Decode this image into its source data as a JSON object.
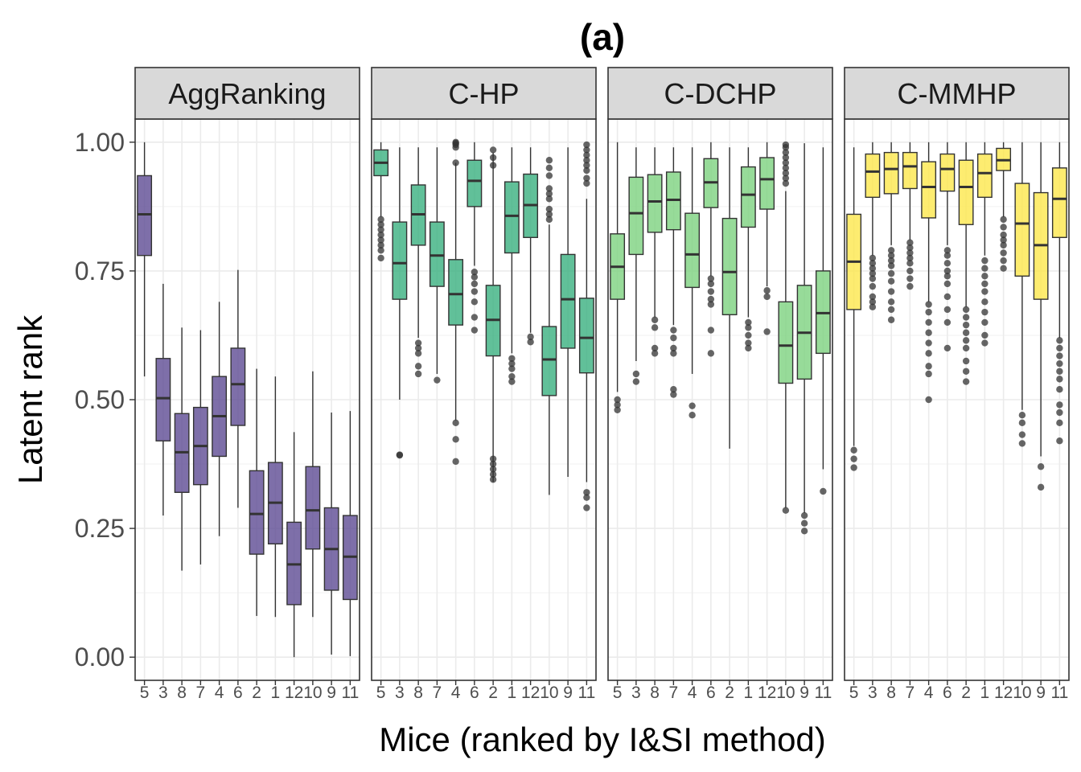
{
  "chart_data": {
    "type": "boxplot",
    "title": "(a)",
    "xlabel": "Mice (ranked by I&SI method)",
    "ylabel": "Latent rank",
    "ylim": [
      -0.045,
      1.045
    ],
    "yticks": [
      0.0,
      0.25,
      0.5,
      0.75,
      1.0
    ],
    "ytick_labels": [
      "0.00",
      "0.25",
      "0.50",
      "0.75",
      "1.00"
    ],
    "categories": [
      "5",
      "3",
      "8",
      "7",
      "4",
      "6",
      "2",
      "1",
      "12",
      "10",
      "9",
      "11"
    ],
    "category_labels": [
      "5",
      "3",
      "8",
      "7",
      "4",
      "6",
      "2",
      "1",
      "12",
      "10",
      "9",
      "11"
    ],
    "facets": [
      {
        "name": "AggRanking",
        "color": "#5E4B93",
        "boxes": [
          {
            "lo": 0.545,
            "q1": 0.78,
            "med": 0.86,
            "q3": 0.935,
            "hi": 1.0,
            "out": []
          },
          {
            "lo": 0.275,
            "q1": 0.42,
            "med": 0.503,
            "q3": 0.58,
            "hi": 0.725,
            "out": []
          },
          {
            "lo": 0.168,
            "q1": 0.32,
            "med": 0.398,
            "q3": 0.473,
            "hi": 0.64,
            "out": []
          },
          {
            "lo": 0.18,
            "q1": 0.335,
            "med": 0.41,
            "q3": 0.485,
            "hi": 0.635,
            "out": []
          },
          {
            "lo": 0.235,
            "q1": 0.39,
            "med": 0.468,
            "q3": 0.545,
            "hi": 0.69,
            "out": []
          },
          {
            "lo": 0.29,
            "q1": 0.45,
            "med": 0.53,
            "q3": 0.6,
            "hi": 0.752,
            "out": []
          },
          {
            "lo": 0.08,
            "q1": 0.2,
            "med": 0.278,
            "q3": 0.362,
            "hi": 0.56,
            "out": []
          },
          {
            "lo": 0.078,
            "q1": 0.22,
            "med": 0.3,
            "q3": 0.378,
            "hi": 0.545,
            "out": []
          },
          {
            "lo": 0.0,
            "q1": 0.102,
            "med": 0.18,
            "q3": 0.262,
            "hi": 0.437,
            "out": []
          },
          {
            "lo": 0.078,
            "q1": 0.21,
            "med": 0.285,
            "q3": 0.37,
            "hi": 0.555,
            "out": []
          },
          {
            "lo": 0.005,
            "q1": 0.13,
            "med": 0.21,
            "q3": 0.29,
            "hi": 0.475,
            "out": []
          },
          {
            "lo": 0.002,
            "q1": 0.112,
            "med": 0.195,
            "q3": 0.275,
            "hi": 0.478,
            "out": []
          }
        ]
      },
      {
        "name": "C-HP",
        "color": "#3AB07F",
        "boxes": [
          {
            "lo": 0.855,
            "q1": 0.935,
            "med": 0.96,
            "q3": 0.985,
            "hi": 1.0,
            "out": [
              0.85,
              0.84,
              0.83,
              0.82,
              0.81,
              0.8,
              0.79,
              0.775
            ]
          },
          {
            "lo": 0.5,
            "q1": 0.695,
            "med": 0.765,
            "q3": 0.845,
            "hi": 0.99,
            "out": [
              0.393,
              0.392
            ]
          },
          {
            "lo": 0.62,
            "q1": 0.8,
            "med": 0.86,
            "q3": 0.917,
            "hi": 0.99,
            "out": [
              0.61,
              0.6,
              0.59,
              0.565,
              0.55
            ]
          },
          {
            "lo": 0.55,
            "q1": 0.72,
            "med": 0.78,
            "q3": 0.845,
            "hi": 0.99,
            "out": [
              0.538
            ]
          },
          {
            "lo": 0.46,
            "q1": 0.645,
            "med": 0.705,
            "q3": 0.772,
            "hi": 0.96,
            "out": [
              1.0,
              0.998,
              0.995,
              0.99,
              0.96,
              0.455,
              0.423,
              0.38
            ]
          },
          {
            "lo": 0.76,
            "q1": 0.875,
            "med": 0.925,
            "q3": 0.965,
            "hi": 1.0,
            "out": [
              0.748,
              0.738,
              0.725,
              0.71,
              0.69,
              0.66,
              0.635
            ]
          },
          {
            "lo": 0.34,
            "q1": 0.585,
            "med": 0.655,
            "q3": 0.722,
            "hi": 0.98,
            "out": [
              0.985,
              0.97,
              0.955,
              0.385,
              0.375,
              0.365,
              0.355,
              0.345
            ]
          },
          {
            "lo": 0.59,
            "q1": 0.785,
            "med": 0.857,
            "q3": 0.923,
            "hi": 0.99,
            "out": [
              0.58,
              0.57,
              0.56,
              0.545,
              0.535
            ]
          },
          {
            "lo": 0.63,
            "q1": 0.815,
            "med": 0.878,
            "q3": 0.938,
            "hi": 0.99,
            "out": [
              0.622,
              0.612
            ]
          },
          {
            "lo": 0.315,
            "q1": 0.508,
            "med": 0.578,
            "q3": 0.642,
            "hi": 0.84,
            "out": [
              0.965,
              0.95,
              0.935,
              0.91,
              0.9,
              0.89,
              0.87,
              0.86,
              0.85
            ]
          },
          {
            "lo": 0.35,
            "q1": 0.6,
            "med": 0.695,
            "q3": 0.782,
            "hi": 0.99,
            "out": []
          },
          {
            "lo": 0.34,
            "q1": 0.552,
            "med": 0.62,
            "q3": 0.697,
            "hi": 0.89,
            "out": [
              0.995,
              0.985,
              0.975,
              0.965,
              0.955,
              0.945,
              0.93,
              0.92,
              0.32,
              0.31,
              0.29
            ]
          }
        ]
      },
      {
        "name": "C-DCHP",
        "color": "#7DD280",
        "boxes": [
          {
            "lo": 0.515,
            "q1": 0.695,
            "med": 0.758,
            "q3": 0.822,
            "hi": 1.0,
            "out": [
              0.5,
              0.49,
              0.48
            ]
          },
          {
            "lo": 0.575,
            "q1": 0.782,
            "med": 0.862,
            "q3": 0.932,
            "hi": 0.99,
            "out": [
              0.55,
              0.535
            ]
          },
          {
            "lo": 0.66,
            "q1": 0.825,
            "med": 0.885,
            "q3": 0.937,
            "hi": 0.99,
            "out": [
              0.655,
              0.64,
              0.6,
              0.59
            ]
          },
          {
            "lo": 0.645,
            "q1": 0.83,
            "med": 0.888,
            "q3": 0.942,
            "hi": 0.99,
            "out": [
              0.635,
              0.62,
              0.6,
              0.59,
              0.52,
              0.51
            ]
          },
          {
            "lo": 0.55,
            "q1": 0.718,
            "med": 0.782,
            "q3": 0.862,
            "hi": 0.99,
            "out": [
              0.488,
              0.47
            ]
          },
          {
            "lo": 0.74,
            "q1": 0.873,
            "med": 0.922,
            "q3": 0.968,
            "hi": 1.0,
            "out": [
              0.735,
              0.725,
              0.71,
              0.695,
              0.685,
              0.635,
              0.59
            ]
          },
          {
            "lo": 0.405,
            "q1": 0.665,
            "med": 0.748,
            "q3": 0.852,
            "hi": 0.99,
            "out": []
          },
          {
            "lo": 0.66,
            "q1": 0.835,
            "med": 0.898,
            "q3": 0.952,
            "hi": 0.99,
            "out": [
              0.65,
              0.64,
              0.625,
              0.61,
              0.6
            ]
          },
          {
            "lo": 0.72,
            "q1": 0.87,
            "med": 0.928,
            "q3": 0.97,
            "hi": 1.0,
            "out": [
              0.712,
              0.7,
              0.632
            ]
          },
          {
            "lo": 0.29,
            "q1": 0.532,
            "med": 0.605,
            "q3": 0.69,
            "hi": 0.905,
            "out": [
              0.995,
              0.99,
              0.98,
              0.97,
              0.96,
              0.95,
              0.94,
              0.93,
              0.92,
              0.285
            ]
          },
          {
            "lo": 0.28,
            "q1": 0.54,
            "med": 0.63,
            "q3": 0.722,
            "hi": 0.998,
            "out": [
              0.275,
              0.26,
              0.245
            ]
          },
          {
            "lo": 0.365,
            "q1": 0.59,
            "med": 0.668,
            "q3": 0.75,
            "hi": 0.99,
            "out": [
              0.322
            ]
          }
        ]
      },
      {
        "name": "C-MMHP",
        "color": "#FDE74C",
        "boxes": [
          {
            "lo": 0.41,
            "q1": 0.675,
            "med": 0.768,
            "q3": 0.86,
            "hi": 0.99,
            "out": [
              0.402,
              0.385,
              0.368
            ]
          },
          {
            "lo": 0.78,
            "q1": 0.893,
            "med": 0.943,
            "q3": 0.977,
            "hi": 1.0,
            "out": [
              0.775,
              0.765,
              0.755,
              0.745,
              0.735,
              0.72,
              0.7,
              0.69,
              0.68
            ]
          },
          {
            "lo": 0.8,
            "q1": 0.9,
            "med": 0.948,
            "q3": 0.98,
            "hi": 1.0,
            "out": [
              0.79,
              0.78,
              0.77,
              0.76,
              0.745,
              0.73,
              0.71,
              0.69,
              0.675,
              0.655
            ]
          },
          {
            "lo": 0.81,
            "q1": 0.91,
            "med": 0.953,
            "q3": 0.98,
            "hi": 1.0,
            "out": [
              0.805,
              0.795,
              0.785,
              0.775,
              0.765,
              0.75,
              0.735,
              0.72
            ]
          },
          {
            "lo": 0.69,
            "q1": 0.853,
            "med": 0.913,
            "q3": 0.962,
            "hi": 1.0,
            "out": [
              0.685,
              0.67,
              0.65,
              0.63,
              0.61,
              0.59,
              0.565,
              0.55,
              0.5
            ]
          },
          {
            "lo": 0.8,
            "q1": 0.905,
            "med": 0.948,
            "q3": 0.977,
            "hi": 1.0,
            "out": [
              0.79,
              0.78,
              0.765,
              0.75,
              0.74,
              0.725,
              0.7,
              0.675,
              0.65,
              0.6
            ]
          },
          {
            "lo": 0.68,
            "q1": 0.84,
            "med": 0.913,
            "q3": 0.965,
            "hi": 1.0,
            "out": [
              0.675,
              0.66,
              0.645,
              0.63,
              0.615,
              0.6,
              0.575,
              0.555,
              0.535
            ]
          },
          {
            "lo": 0.78,
            "q1": 0.893,
            "med": 0.94,
            "q3": 0.977,
            "hi": 1.0,
            "out": [
              0.77,
              0.755,
              0.74,
              0.725,
              0.71,
              0.69,
              0.67,
              0.65,
              0.625,
              0.61
            ]
          },
          {
            "lo": 0.855,
            "q1": 0.945,
            "med": 0.965,
            "q3": 0.988,
            "hi": 1.0,
            "out": [
              0.85,
              0.835,
              0.82,
              0.81,
              0.8,
              0.785,
              0.77,
              0.755
            ]
          },
          {
            "lo": 0.48,
            "q1": 0.74,
            "med": 0.842,
            "q3": 0.92,
            "hi": 1.0,
            "out": [
              0.47,
              0.455,
              0.432,
              0.415
            ]
          },
          {
            "lo": 0.39,
            "q1": 0.695,
            "med": 0.8,
            "q3": 0.902,
            "hi": 1.0,
            "out": [
              0.37,
              0.33
            ]
          },
          {
            "lo": 0.62,
            "q1": 0.815,
            "med": 0.89,
            "q3": 0.95,
            "hi": 1.0,
            "out": [
              0.615,
              0.6,
              0.585,
              0.57,
              0.555,
              0.54,
              0.52,
              0.49,
              0.475,
              0.455,
              0.42
            ]
          }
        ]
      }
    ]
  }
}
